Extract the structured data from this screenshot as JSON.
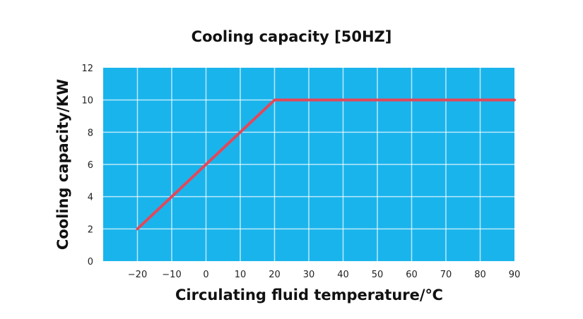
{
  "chart_data": {
    "type": "line",
    "title": "Cooling capacity [50HZ]",
    "xlabel": "Circulating fluid temperature/℃",
    "ylabel": "Cooling capacity/KW",
    "xlim": [
      -30,
      90
    ],
    "ylim": [
      0,
      12
    ],
    "xticks": [
      "−20",
      "−10",
      "0",
      "10",
      "20",
      "30",
      "40",
      "50",
      "60",
      "70",
      "80",
      "90"
    ],
    "xtick_values": [
      -20,
      -10,
      0,
      10,
      20,
      30,
      40,
      50,
      60,
      70,
      80,
      90
    ],
    "yticks": [
      "0",
      "2",
      "4",
      "6",
      "8",
      "10",
      "12"
    ],
    "ytick_values": [
      0,
      2,
      4,
      6,
      8,
      10,
      12
    ],
    "grid": true,
    "series": [
      {
        "x": [
          -20,
          20,
          90
        ],
        "y": [
          2,
          10,
          10
        ],
        "color": "#e2485a"
      }
    ],
    "background_color": "#1ab4ec",
    "grid_color": "#ffffff"
  }
}
